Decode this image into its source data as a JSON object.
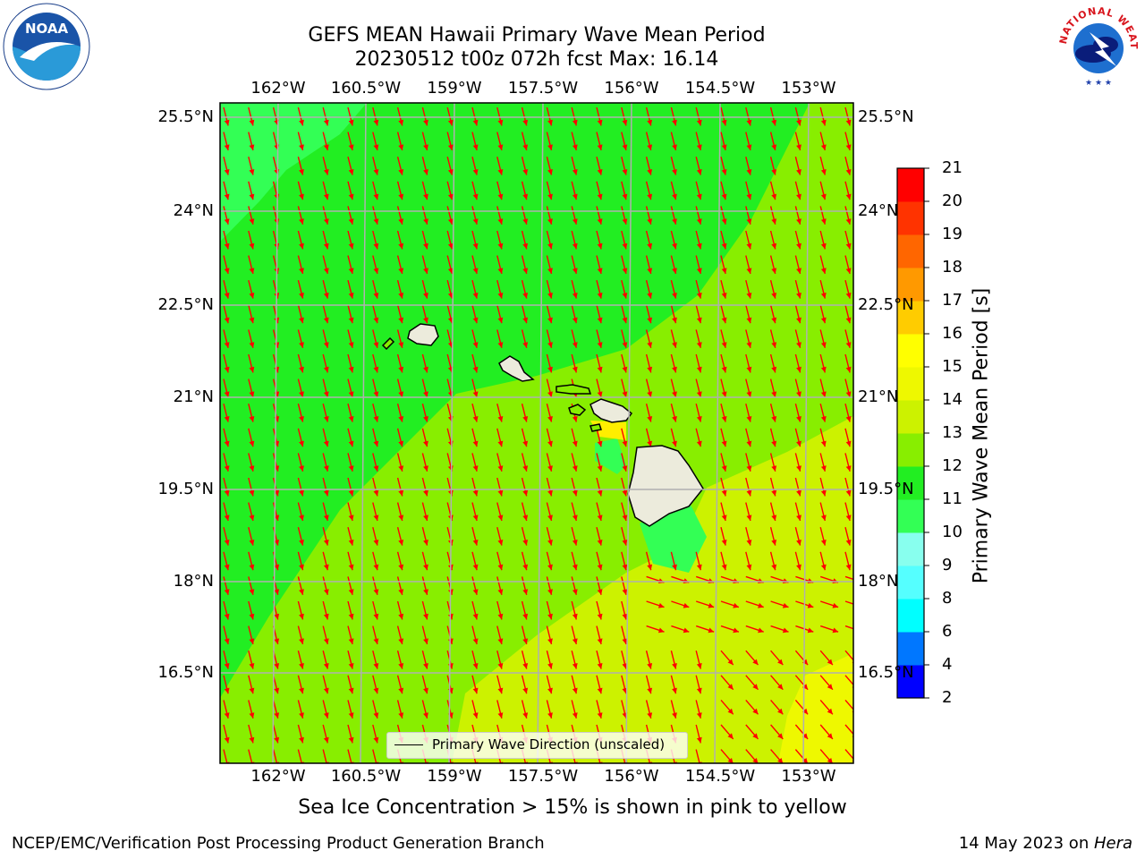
{
  "header": {
    "title": "GEFS MEAN Hawaii Primary Wave Mean Period",
    "subtitle": "20230512 t00z 072h fcst   Max: 16.14"
  },
  "map": {
    "lon_labels": [
      "162°W",
      "160.5°W",
      "159°W",
      "157.5°W",
      "156°W",
      "154.5°W",
      "153°W"
    ],
    "lat_labels": [
      "25.5°N",
      "24°N",
      "22.5°N",
      "21°N",
      "19.5°N",
      "18°N",
      "16.5°N"
    ],
    "legend_label": "Primary Wave Direction (unscaled)",
    "field_colors": {
      "band_10_11": "#33ff55",
      "band_11_12": "#22ee22",
      "band_12_13": "#88ee00",
      "band_13_14": "#ccf200",
      "band_14_15": "#eef800",
      "land": "#ecebdc",
      "arrow": "#ff0000"
    }
  },
  "colorbar": {
    "label": "Primary Wave Mean Period [s]",
    "ticks": [
      "2",
      "4",
      "6",
      "8",
      "9",
      "10",
      "11",
      "12",
      "13",
      "14",
      "15",
      "16",
      "17",
      "18",
      "19",
      "20",
      "21"
    ],
    "colors": [
      "#0000ff",
      "#0077ff",
      "#00ffff",
      "#55ffff",
      "#88ffee",
      "#33ff55",
      "#22ee22",
      "#88ee00",
      "#ccf200",
      "#eef800",
      "#ffff00",
      "#ffcc00",
      "#ff9900",
      "#ff6600",
      "#ff3300",
      "#ff0000"
    ]
  },
  "note": "Sea Ice Concentration > 15% is shown in pink to yellow",
  "footer": {
    "left": "NCEP/EMC/Verification Post Processing Product Generation Branch",
    "date": "14 May 2023 on ",
    "machine": "Hera"
  },
  "logos": {
    "noaa": "NOAA",
    "nws_top": "NATIONAL WEATHER SERVICE"
  }
}
